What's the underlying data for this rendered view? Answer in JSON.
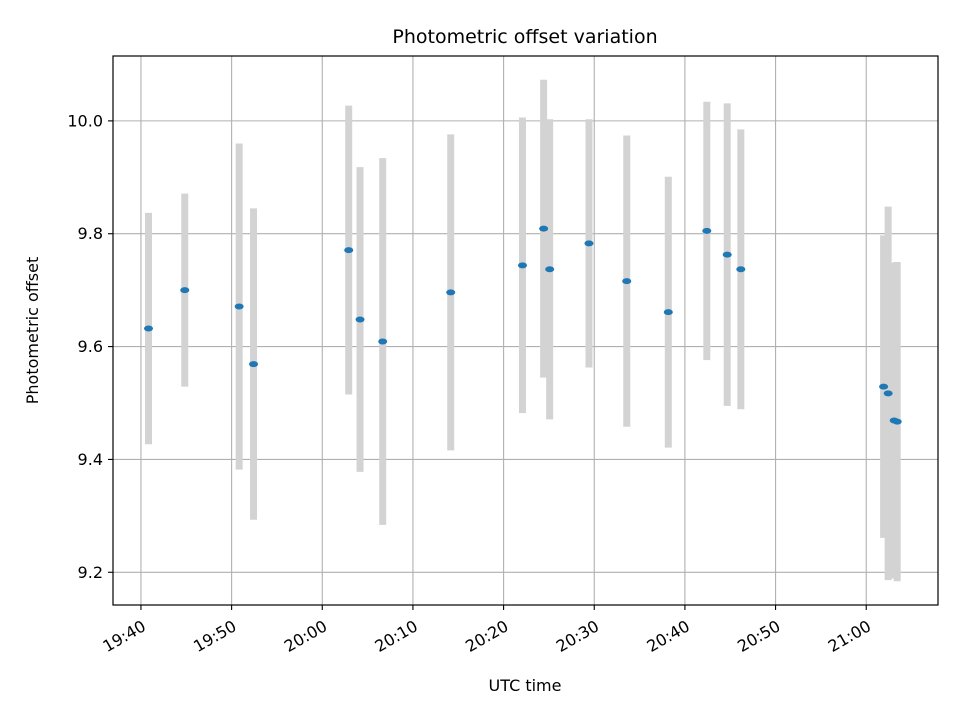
{
  "chart_data": {
    "type": "scatter",
    "title": "Photometric offset variation",
    "xlabel": "UTC time",
    "ylabel": "Photometric offset",
    "x_ticks": [
      "19:40",
      "19:50",
      "20:00",
      "20:10",
      "20:20",
      "20:30",
      "20:40",
      "20:50",
      "21:00"
    ],
    "y_ticks": [
      "9.2",
      "9.4",
      "9.6",
      "9.8",
      "10.0"
    ],
    "xlim": [
      "19:36:55",
      "21:07:55"
    ],
    "ylim": [
      9.142,
      10.115
    ],
    "grid": true,
    "colors": {
      "marker": "#1f77b4",
      "errorbar": "#d3d3d3",
      "grid": "#b0b0b0"
    },
    "points": [
      {
        "x": "19:40:50",
        "y": 9.632,
        "err": 0.205
      },
      {
        "x": "19:44:50",
        "y": 9.7,
        "err": 0.171
      },
      {
        "x": "19:50:50",
        "y": 9.671,
        "err": 0.289
      },
      {
        "x": "19:52:25",
        "y": 9.569,
        "err": 0.276
      },
      {
        "x": "20:02:55",
        "y": 9.771,
        "err": 0.256
      },
      {
        "x": "20:04:10",
        "y": 9.648,
        "err": 0.27
      },
      {
        "x": "20:06:40",
        "y": 9.609,
        "err": 0.325
      },
      {
        "x": "20:14:10",
        "y": 9.696,
        "err": 0.28
      },
      {
        "x": "20:22:05",
        "y": 9.744,
        "err": 0.262
      },
      {
        "x": "20:24:25",
        "y": 9.809,
        "err": 0.264
      },
      {
        "x": "20:25:05",
        "y": 9.737,
        "err": 0.266
      },
      {
        "x": "20:29:25",
        "y": 9.783,
        "err": 0.22
      },
      {
        "x": "20:33:35",
        "y": 9.716,
        "err": 0.258
      },
      {
        "x": "20:38:10",
        "y": 9.661,
        "err": 0.24
      },
      {
        "x": "20:42:25",
        "y": 9.805,
        "err": 0.229
      },
      {
        "x": "20:44:40",
        "y": 9.763,
        "err": 0.268
      },
      {
        "x": "20:46:10",
        "y": 9.737,
        "err": 0.248
      },
      {
        "x": "21:01:55",
        "y": 9.529,
        "err": 0.268
      },
      {
        "x": "21:02:25",
        "y": 9.517,
        "err": 0.331
      },
      {
        "x": "21:03:05",
        "y": 9.469,
        "err": 0.28
      },
      {
        "x": "21:03:25",
        "y": 9.467,
        "err": 0.283
      }
    ]
  }
}
